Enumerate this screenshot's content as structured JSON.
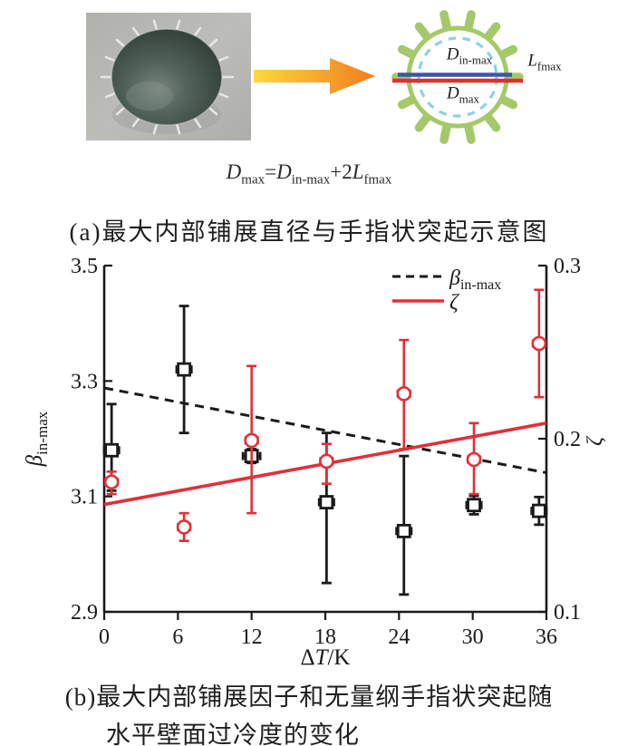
{
  "colors": {
    "black": "#1a1a1a",
    "red": "#e03039",
    "gear_green": "#a5c96a",
    "dashed_blue": "#8fd0e8",
    "din_blue": "#3a57a7",
    "arrow_yellow": "#ffd83c",
    "arrow_orange": "#ef7d20",
    "photo_bg": "#b5b6b2"
  },
  "schematic": {
    "d_in": {
      "base": "D",
      "sub": "in-max"
    },
    "d_max": {
      "base": "D",
      "sub": "max"
    },
    "l_fmax": {
      "base": "L",
      "sub": "fmax"
    }
  },
  "equation": {
    "lhs_base": "D",
    "lhs_sub": "max",
    "equals": "=",
    "rhs1_base": "D",
    "rhs1_sub": "in-max",
    "plus": "+2",
    "rhs2_base": "L",
    "rhs2_sub": "fmax"
  },
  "caption_a": "(a)最大内部铺展直径与手指状突起示意图",
  "caption_b_line1": "(b)最大内部铺展因子和无量纲手指状突起随",
  "caption_b_line2": "水平壁面过冷度的变化",
  "chart_data": {
    "type": "scatter",
    "title": "",
    "x_axis": {
      "label_delta": "Δ",
      "label_T": "T",
      "label_unit": "/K",
      "ticks": [
        0,
        6,
        12,
        18,
        24,
        30,
        36
      ],
      "range": [
        0,
        36
      ]
    },
    "y_left": {
      "label_base": "β",
      "label_sub": "in-max",
      "ticks": [
        2.9,
        3.1,
        3.3,
        3.5
      ],
      "range": [
        2.9,
        3.5
      ]
    },
    "y_right": {
      "label": "ζ",
      "ticks": [
        0.1,
        0.2,
        0.3
      ],
      "range": [
        0.1,
        0.3
      ]
    },
    "grid": false,
    "legend_position": "top-right-inside",
    "legend": [
      {
        "label_base": "β",
        "label_sub": "in-max",
        "style": "dashed-black"
      },
      {
        "label_base": "ζ",
        "label_sub": "",
        "style": "solid-red"
      }
    ],
    "series": [
      {
        "name": "beta_in_max",
        "axis": "left",
        "marker": "square",
        "color": "#1a1a1a",
        "x": [
          0.6,
          6.5,
          12.0,
          18.1,
          24.4,
          30.1,
          35.4
        ],
        "y": [
          3.18,
          3.32,
          3.17,
          3.09,
          3.04,
          3.085,
          3.075
        ],
        "yerr_plus": [
          0.08,
          0.11,
          0.012,
          0.12,
          0.13,
          0.016,
          0.024
        ],
        "yerr_minus": [
          0.07,
          0.11,
          0.012,
          0.14,
          0.11,
          0.016,
          0.024
        ],
        "xerr": [
          0.6,
          0.6,
          0.7,
          0.6,
          0.6,
          0.6,
          0.6
        ]
      },
      {
        "name": "zeta",
        "axis": "right",
        "marker": "circle",
        "color": "#e03039",
        "x": [
          0.6,
          6.5,
          12.0,
          18.1,
          24.4,
          30.1,
          35.4
        ],
        "y": [
          0.175,
          0.149,
          0.199,
          0.187,
          0.226,
          0.188,
          0.255
        ],
        "yerr_plus": [
          0.006,
          0.008,
          0.043,
          0.01,
          0.031,
          0.021,
          0.031
        ],
        "yerr_minus": [
          0.007,
          0.008,
          0.042,
          0.013,
          0.032,
          0.02,
          0.031
        ],
        "xerr": [
          0.5,
          0.5,
          0.5,
          0.5,
          0.5,
          0.5,
          0.5
        ]
      }
    ],
    "trend_lines": [
      {
        "series": "beta_in_max",
        "axis": "left",
        "style": "dashed",
        "color": "#1a1a1a",
        "from": [
          0,
          3.288
        ],
        "to": [
          36,
          3.141
        ]
      },
      {
        "series": "zeta",
        "axis": "right",
        "style": "solid",
        "color": "#e03039",
        "from": [
          0,
          0.162
        ],
        "to": [
          36,
          0.209
        ]
      }
    ]
  }
}
